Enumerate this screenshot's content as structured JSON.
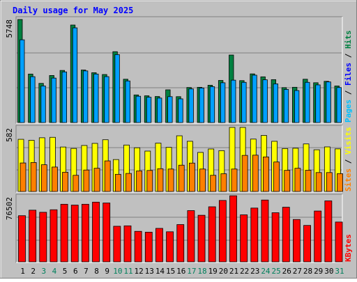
{
  "chart_data": {
    "type": "bar",
    "title": "Daily usage for May 2025",
    "days": [
      "1",
      "2",
      "3",
      "4",
      "5",
      "6",
      "7",
      "8",
      "9",
      "10",
      "11",
      "12",
      "13",
      "14",
      "15",
      "16",
      "17",
      "18",
      "19",
      "20",
      "21",
      "22",
      "23",
      "24",
      "25",
      "26",
      "27",
      "28",
      "29",
      "30",
      "31"
    ],
    "weekend_days": [
      "3",
      "4",
      "10",
      "11",
      "17",
      "18",
      "24",
      "25",
      "31"
    ],
    "panels": [
      {
        "id": "hits-files-pages",
        "max_label": "5748",
        "max": 5748,
        "right_label": {
          "pages": "Pages",
          "files": "Files",
          "hits": "Hits",
          "sep": " / "
        },
        "series": [
          {
            "name": "Hits",
            "color": "#008040",
            "values": [
              5748,
              2705,
              2185,
              2625,
              2907,
              5439,
              2930,
              2780,
              2680,
              3953,
              2417,
              1541,
              1492,
              1453,
              1826,
              1445,
              1956,
              1966,
              2082,
              2349,
              3766,
              2339,
              2715,
              2551,
              2394,
              1949,
              1968,
              2417,
              2221,
              2300,
              2040
            ]
          },
          {
            "name": "Files",
            "color": "#00a0ff",
            "values": [
              4616,
              2560,
              2043,
              2480,
              2825,
              5282,
              2880,
              2706,
              2562,
              3791,
              2321,
              1468,
              1412,
              1366,
              1445,
              1323,
              1876,
              1928,
              2000,
              2219,
              2364,
              2243,
              2643,
              2386,
              2158,
              1847,
              1787,
              2243,
              2100,
              2266,
              1952
            ]
          },
          {
            "name": "Pages",
            "color": "#00c0ff",
            "values": [
              0,
              0,
              0,
              0,
              0,
              0,
              0,
              0,
              0,
              0,
              0,
              0,
              0,
              0,
              0,
              0,
              0,
              0,
              0,
              0,
              0,
              0,
              0,
              0,
              0,
              0,
              0,
              0,
              0,
              0,
              0
            ]
          }
        ]
      },
      {
        "id": "visits-sites",
        "max_label": "582",
        "max": 582,
        "right_label": {
          "sites": "Sites",
          "visits": "Visits",
          "sep": " / "
        },
        "series": [
          {
            "name": "Visits",
            "color": "#ffff00",
            "values": [
              474,
              465,
              488,
              492,
              404,
              391,
              418,
              437,
              470,
              290,
              422,
              397,
              367,
              439,
              401,
              506,
              456,
              355,
              386,
              371,
              582,
              582,
              476,
              509,
              456,
              390,
              393,
              432,
              379,
              405,
              387
            ]
          },
          {
            "name": "Sites",
            "color": "#ff8000",
            "values": [
              259,
              263,
              243,
              222,
              175,
              147,
              195,
              211,
              278,
              156,
              164,
              187,
              191,
              207,
              204,
              239,
              258,
              204,
              147,
              161,
              204,
              328,
              330,
              314,
              268,
              192,
              211,
              193,
              172,
              172,
              162
            ]
          }
        ]
      },
      {
        "id": "kbytes",
        "max_label": "76502",
        "max": 76502,
        "right_label": {
          "kbytes": "KBytes"
        },
        "series": [
          {
            "name": "KBytes",
            "color": "#ff0000",
            "values": [
              54500,
              61000,
              58500,
              61500,
              68000,
              67000,
              68000,
              70500,
              69500,
              42000,
              42500,
              36000,
              35000,
              39500,
              35500,
              44000,
              60500,
              55000,
              65000,
              72500,
              79000,
              55500,
              63500,
              73000,
              58000,
              64500,
              50000,
              43000,
              60000,
              72000,
              47000
            ]
          }
        ]
      }
    ],
    "colors": {
      "background": "#c0c0c0",
      "frame": "#808080",
      "title": "#0000ff",
      "weekend_label": "#00805c",
      "gridline": "#808080"
    }
  }
}
